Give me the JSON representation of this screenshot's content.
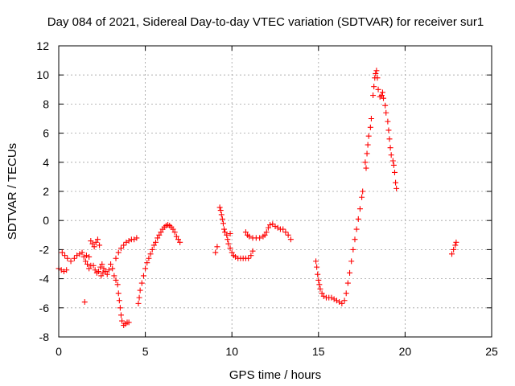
{
  "chart_data": {
    "type": "scatter",
    "title": "Day 084 of 2021, Sidereal Day-to-day VTEC variation (SDTVAR) for receiver sur1",
    "xlabel": "GPS time / hours",
    "ylabel": "SDTVAR / TECUs",
    "xlim": [
      0,
      25
    ],
    "ylim": [
      -8,
      12
    ],
    "xticks": [
      0,
      5,
      10,
      15,
      20,
      25
    ],
    "yticks": [
      -8,
      -6,
      -4,
      -2,
      0,
      2,
      4,
      6,
      8,
      10,
      12
    ],
    "grid": true,
    "marker": "+",
    "color": "#ff0000",
    "series": [
      {
        "name": "sur1",
        "points": [
          [
            0.0,
            -3.3
          ],
          [
            0.15,
            -3.4
          ],
          [
            0.3,
            -3.5
          ],
          [
            0.45,
            -3.4
          ],
          [
            0.2,
            -2.2
          ],
          [
            0.35,
            -2.4
          ],
          [
            0.5,
            -2.6
          ],
          [
            0.7,
            -2.8
          ],
          [
            0.9,
            -2.6
          ],
          [
            1.05,
            -2.4
          ],
          [
            1.2,
            -2.3
          ],
          [
            1.35,
            -2.2
          ],
          [
            1.45,
            -2.5
          ],
          [
            1.55,
            -2.8
          ],
          [
            1.65,
            -3.0
          ],
          [
            1.75,
            -3.3
          ],
          [
            1.85,
            -3.1
          ],
          [
            1.6,
            -2.4
          ],
          [
            1.75,
            -2.5
          ],
          [
            1.5,
            -5.6
          ],
          [
            1.85,
            -1.4
          ],
          [
            1.95,
            -1.6
          ],
          [
            2.05,
            -1.8
          ],
          [
            2.15,
            -1.5
          ],
          [
            2.25,
            -1.3
          ],
          [
            2.35,
            -1.7
          ],
          [
            2.0,
            -3.1
          ],
          [
            2.1,
            -3.4
          ],
          [
            2.2,
            -3.6
          ],
          [
            2.3,
            -3.5
          ],
          [
            2.4,
            -3.2
          ],
          [
            2.5,
            -3.0
          ],
          [
            2.6,
            -3.3
          ],
          [
            2.7,
            -3.5
          ],
          [
            2.8,
            -3.7
          ],
          [
            2.9,
            -3.4
          ],
          [
            3.0,
            -3.0
          ],
          [
            3.1,
            -3.3
          ],
          [
            2.45,
            -3.8
          ],
          [
            2.55,
            -3.6
          ],
          [
            3.2,
            -3.8
          ],
          [
            3.3,
            -4.1
          ],
          [
            3.4,
            -4.4
          ],
          [
            3.45,
            -5.0
          ],
          [
            3.5,
            -5.5
          ],
          [
            3.55,
            -6.0
          ],
          [
            3.6,
            -6.5
          ],
          [
            3.65,
            -6.9
          ],
          [
            3.75,
            -7.2
          ],
          [
            3.85,
            -7.1
          ],
          [
            3.95,
            -7.0
          ],
          [
            4.05,
            -7.0
          ],
          [
            3.3,
            -2.6
          ],
          [
            3.45,
            -2.2
          ],
          [
            3.6,
            -1.9
          ],
          [
            3.75,
            -1.7
          ],
          [
            3.9,
            -1.5
          ],
          [
            4.05,
            -1.4
          ],
          [
            4.2,
            -1.3
          ],
          [
            4.35,
            -1.3
          ],
          [
            4.5,
            -1.2
          ],
          [
            4.6,
            -5.7
          ],
          [
            4.65,
            -5.3
          ],
          [
            4.7,
            -4.8
          ],
          [
            4.8,
            -4.3
          ],
          [
            4.9,
            -3.8
          ],
          [
            5.0,
            -3.3
          ],
          [
            5.1,
            -2.9
          ],
          [
            5.2,
            -2.6
          ],
          [
            5.3,
            -2.3
          ],
          [
            5.4,
            -2.0
          ],
          [
            5.5,
            -1.7
          ],
          [
            5.6,
            -1.5
          ],
          [
            5.7,
            -1.2
          ],
          [
            5.8,
            -1.0
          ],
          [
            5.9,
            -0.8
          ],
          [
            6.0,
            -0.6
          ],
          [
            6.1,
            -0.45
          ],
          [
            6.2,
            -0.35
          ],
          [
            6.3,
            -0.3
          ],
          [
            6.4,
            -0.35
          ],
          [
            6.5,
            -0.45
          ],
          [
            6.6,
            -0.6
          ],
          [
            6.7,
            -0.8
          ],
          [
            6.8,
            -1.1
          ],
          [
            6.9,
            -1.3
          ],
          [
            7.0,
            -1.5
          ],
          [
            9.05,
            -2.2
          ],
          [
            9.15,
            -1.8
          ],
          [
            9.3,
            0.9
          ],
          [
            9.35,
            0.7
          ],
          [
            9.4,
            0.4
          ],
          [
            9.45,
            0.1
          ],
          [
            9.5,
            -0.2
          ],
          [
            9.55,
            -0.6
          ],
          [
            9.6,
            -0.8
          ],
          [
            9.7,
            -1.0
          ],
          [
            9.75,
            -1.3
          ],
          [
            9.8,
            -1.6
          ],
          [
            9.9,
            -1.9
          ],
          [
            10.0,
            -2.2
          ],
          [
            10.1,
            -2.4
          ],
          [
            10.2,
            -2.5
          ],
          [
            10.35,
            -2.6
          ],
          [
            10.5,
            -2.6
          ],
          [
            10.65,
            -2.6
          ],
          [
            10.8,
            -2.6
          ],
          [
            10.95,
            -2.6
          ],
          [
            11.1,
            -2.4
          ],
          [
            11.2,
            -2.1
          ],
          [
            10.8,
            -0.8
          ],
          [
            10.9,
            -1.0
          ],
          [
            11.0,
            -1.1
          ],
          [
            11.2,
            -1.2
          ],
          [
            11.4,
            -1.2
          ],
          [
            11.6,
            -1.2
          ],
          [
            11.8,
            -1.1
          ],
          [
            11.9,
            -1.0
          ],
          [
            12.0,
            -0.8
          ],
          [
            12.1,
            -0.5
          ],
          [
            12.2,
            -0.3
          ],
          [
            12.35,
            -0.25
          ],
          [
            12.5,
            -0.4
          ],
          [
            12.65,
            -0.5
          ],
          [
            12.8,
            -0.6
          ],
          [
            12.95,
            -0.6
          ],
          [
            13.1,
            -0.8
          ],
          [
            13.25,
            -1.0
          ],
          [
            13.4,
            -1.3
          ],
          [
            9.9,
            -0.9
          ],
          [
            14.85,
            -2.8
          ],
          [
            14.9,
            -3.2
          ],
          [
            14.95,
            -3.7
          ],
          [
            15.0,
            -4.1
          ],
          [
            15.05,
            -4.4
          ],
          [
            15.1,
            -4.7
          ],
          [
            15.2,
            -5.0
          ],
          [
            15.3,
            -5.2
          ],
          [
            15.45,
            -5.3
          ],
          [
            15.6,
            -5.3
          ],
          [
            15.75,
            -5.3
          ],
          [
            15.9,
            -5.4
          ],
          [
            16.05,
            -5.5
          ],
          [
            16.2,
            -5.6
          ],
          [
            16.35,
            -5.7
          ],
          [
            16.5,
            -5.5
          ],
          [
            16.6,
            -5.0
          ],
          [
            16.7,
            -4.3
          ],
          [
            16.8,
            -3.6
          ],
          [
            16.9,
            -2.8
          ],
          [
            17.0,
            -2.0
          ],
          [
            17.1,
            -1.3
          ],
          [
            17.2,
            -0.6
          ],
          [
            17.3,
            0.1
          ],
          [
            17.4,
            0.8
          ],
          [
            17.5,
            1.6
          ],
          [
            17.55,
            2.0
          ],
          [
            17.7,
            4.0
          ],
          [
            17.8,
            4.6
          ],
          [
            17.85,
            5.2
          ],
          [
            17.9,
            5.8
          ],
          [
            18.0,
            6.4
          ],
          [
            18.05,
            7.0
          ],
          [
            18.15,
            8.6
          ],
          [
            18.2,
            9.2
          ],
          [
            18.25,
            9.8
          ],
          [
            18.3,
            10.1
          ],
          [
            18.35,
            10.3
          ],
          [
            18.4,
            9.8
          ],
          [
            18.45,
            9.0
          ],
          [
            18.55,
            8.5
          ],
          [
            18.65,
            8.6
          ],
          [
            18.7,
            8.8
          ],
          [
            18.75,
            8.4
          ],
          [
            18.85,
            7.9
          ],
          [
            18.9,
            7.4
          ],
          [
            19.0,
            6.8
          ],
          [
            19.05,
            6.2
          ],
          [
            19.1,
            5.6
          ],
          [
            19.15,
            5.0
          ],
          [
            19.2,
            4.5
          ],
          [
            19.3,
            4.1
          ],
          [
            19.35,
            3.8
          ],
          [
            19.4,
            3.3
          ],
          [
            19.45,
            2.6
          ],
          [
            19.5,
            2.2
          ],
          [
            17.75,
            3.6
          ],
          [
            22.7,
            -2.3
          ],
          [
            22.8,
            -2.0
          ],
          [
            22.9,
            -1.7
          ],
          [
            22.95,
            -1.5
          ]
        ]
      }
    ]
  }
}
